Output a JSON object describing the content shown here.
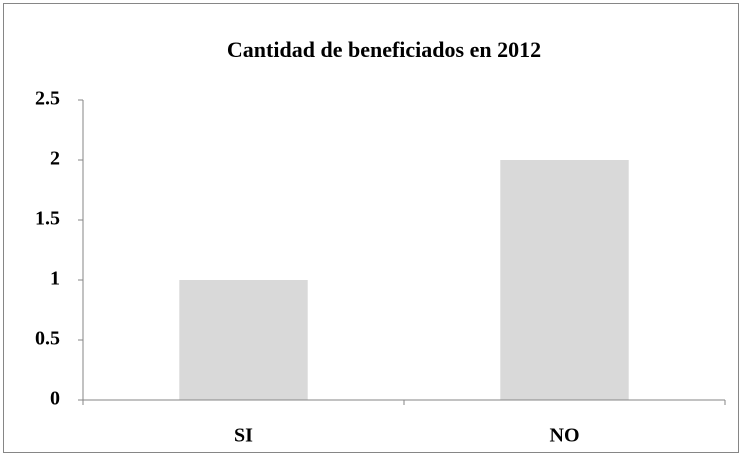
{
  "chart_data": {
    "type": "bar",
    "title": "Cantidad de beneficiados en 2012",
    "categories": [
      "SI",
      "NO"
    ],
    "values": [
      1,
      2
    ],
    "color": "#d9d9d9",
    "ylim": [
      0,
      2.5
    ],
    "yticks": [
      0,
      0.5,
      1,
      1.5,
      2,
      2.5
    ],
    "grid": false
  }
}
